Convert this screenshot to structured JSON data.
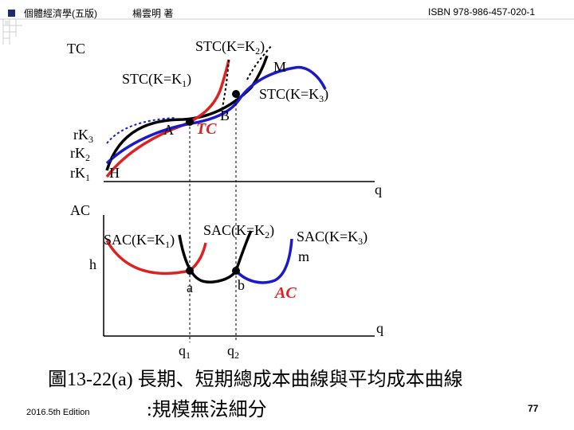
{
  "header": {
    "course_title": "個體經濟學(五版)",
    "author": "楊雲明 著",
    "isbn": "ISBN 978-986-457-020-1"
  },
  "colors": {
    "red": "#dd2222",
    "blue": "#1a1acc",
    "black": "#000000",
    "grid": "#d8d8d8"
  },
  "top_figure": {
    "y_axis_label": "TC",
    "x_axis_label": "q",
    "stc2_label": "STC(K=K2)",
    "stc1_label": "STC(K=K1)",
    "stc3_label": "STC(K=K3)",
    "point_m": "M",
    "point_b": "B",
    "point_a": "A",
    "tc_label": "TC",
    "rk3": "rK3",
    "rk2": "rK2",
    "rk1": "rK1",
    "h_upper": "H"
  },
  "bottom_figure": {
    "y_axis_label": "AC",
    "x_axis_label": "q",
    "sac2_label": "SAC(K=K2)",
    "sac1_label": "SAC(K=K1)",
    "sac3_label": "SAC(K=K3)",
    "point_m_lower": "m",
    "h_lower": "h",
    "point_a_lower": "a",
    "point_b_lower": "b",
    "ac_label": "AC",
    "q1": "q1",
    "q2": "q2"
  },
  "caption": {
    "line1": "圖13-22(a) 長期、短期總成本曲線與平均成本曲線",
    "line2": ":規模無法細分"
  },
  "footer": {
    "edition": "2016.5th Edition",
    "page": "77"
  }
}
